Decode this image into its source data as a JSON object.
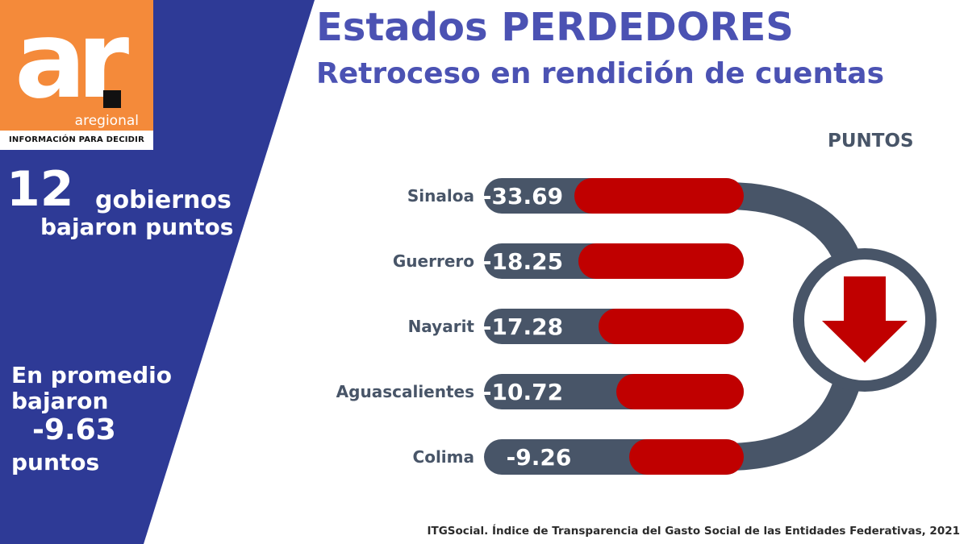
{
  "logo": {
    "mark": "ar",
    "name": "aregional",
    "tagline": "INFORMACIÓN PARA DECIDIR"
  },
  "left_panel": {
    "count": "12",
    "count_line1": "gobiernos",
    "count_line2": "bajaron puntos",
    "avg_line1": "En promedio",
    "avg_line2": "bajaron",
    "avg_value": "-9.63",
    "avg_line3": "puntos"
  },
  "header": {
    "title": "Estados PERDEDORES",
    "subtitle": "Retroceso en rendición de cuentas"
  },
  "chart_data": {
    "type": "bar",
    "orientation": "horizontal",
    "title": "",
    "xlabel": "",
    "ylabel": "",
    "unit_label": "PUNTOS",
    "categories": [
      "Sinaloa",
      "Guerrero",
      "Nayarit",
      "Aguascalientes",
      "Colima"
    ],
    "values": [
      -33.69,
      -18.25,
      -17.28,
      -10.72,
      -9.26
    ],
    "value_labels": [
      "-33.69",
      "-18.25",
      "-17.28",
      "-10.72",
      "-9.26"
    ],
    "legend": "none",
    "grid": false
  },
  "source": "ITGSocial. Índice de Transparencia del Gasto Social de las Entidades Federativas, 2021",
  "colors": {
    "panel_blue": "#2e3a96",
    "logo_orange": "#f48a3a",
    "title_blue": "#4b52b3",
    "track_slate": "#485568",
    "bar_red": "#c00000",
    "arrow_red": "#c00000"
  },
  "icons": {
    "trend": "down-arrow-icon"
  }
}
